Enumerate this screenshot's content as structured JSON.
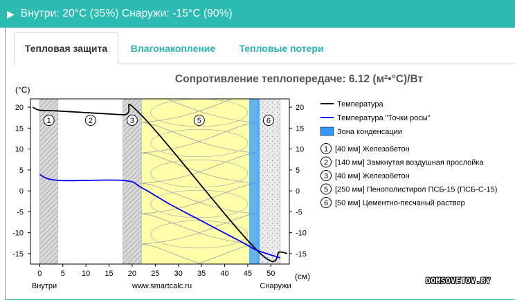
{
  "header": {
    "title": "Внутри: 20°C (35%) Снаружи: -15°C (90%)",
    "arrow_icon": "triangle-right-icon"
  },
  "tabs": [
    {
      "label": "Тепловая защита",
      "active": true
    },
    {
      "label": "Влагонакопление",
      "active": false
    },
    {
      "label": "Тепловые потери",
      "active": false
    }
  ],
  "colors": {
    "accent": "#2bbbb2",
    "temperature_line": "#000000",
    "dew_point_line": "#0000ff",
    "insulation_fill": "#ffffaa",
    "condensation_zone": "#3399ff"
  },
  "chart_data": {
    "type": "line",
    "title": "Сопротивление теплопередаче: 6.12 (м²•°C)/Вт",
    "ylabel": "(°C)",
    "xlabel": "(см)",
    "xlim": [
      -2,
      54
    ],
    "ylim": [
      -17.5,
      22
    ],
    "xticks": [
      0,
      5,
      10,
      15,
      20,
      25,
      30,
      35,
      40,
      45,
      50
    ],
    "yticks": [
      -15,
      -10,
      -5,
      0,
      5,
      10,
      15,
      20
    ],
    "x_bottom_labels": {
      "left": "Внутри",
      "center": "www.smartcalc.ru",
      "right": "Снаружи"
    },
    "layers": [
      {
        "num": "1",
        "from": 0,
        "to": 4,
        "type": "concrete"
      },
      {
        "num": "2",
        "from": 4,
        "to": 18,
        "type": "air"
      },
      {
        "num": "3",
        "from": 18,
        "to": 22,
        "type": "concrete"
      },
      {
        "num": "5",
        "from": 22,
        "to": 47,
        "type": "eps"
      },
      {
        "num": "6",
        "from": 47,
        "to": 52,
        "type": "plaster"
      }
    ],
    "condensation_zone": [
      45.3,
      47.6
    ],
    "series": [
      {
        "name": "Температура",
        "color": "#000000",
        "x": [
          -1.5,
          0,
          4,
          18,
          22,
          47,
          52,
          53.5
        ],
        "y": [
          20,
          19.3,
          19.1,
          18.2,
          18.1,
          -14.2,
          -14.6,
          -15
        ]
      },
      {
        "name": "Температура \"Точки росы\"",
        "color": "#0000ff",
        "x": [
          0,
          4,
          18,
          22,
          28,
          34,
          40,
          44,
          47,
          52
        ],
        "y": [
          3.9,
          2.5,
          2.5,
          0.8,
          -3.1,
          -6.6,
          -10.1,
          -12.4,
          -14.2,
          -16
        ]
      }
    ],
    "legend": [
      {
        "kind": "line",
        "color": "#000000",
        "label": "Температура"
      },
      {
        "kind": "line",
        "color": "#0000ff",
        "label": "Температура \"Точки росы\""
      },
      {
        "kind": "box",
        "color": "#3399ff",
        "label": "Зона конденсации"
      }
    ],
    "layer_legend": [
      {
        "num": "1",
        "label": "[40 мм] Железобетон"
      },
      {
        "num": "2",
        "label": "[140 мм] Замкнутая воздушная прослойка"
      },
      {
        "num": "3",
        "label": "[40 мм] Железобетон"
      },
      {
        "num": "5",
        "label": "[250 мм] Пенополистирол ПСБ-15 (ПСБ-С-15)"
      },
      {
        "num": "6",
        "label": "[50 мм] Цементно-песчаный раствор"
      }
    ],
    "legend_position": "right"
  },
  "watermark": "DOMSOVETOV.BY"
}
